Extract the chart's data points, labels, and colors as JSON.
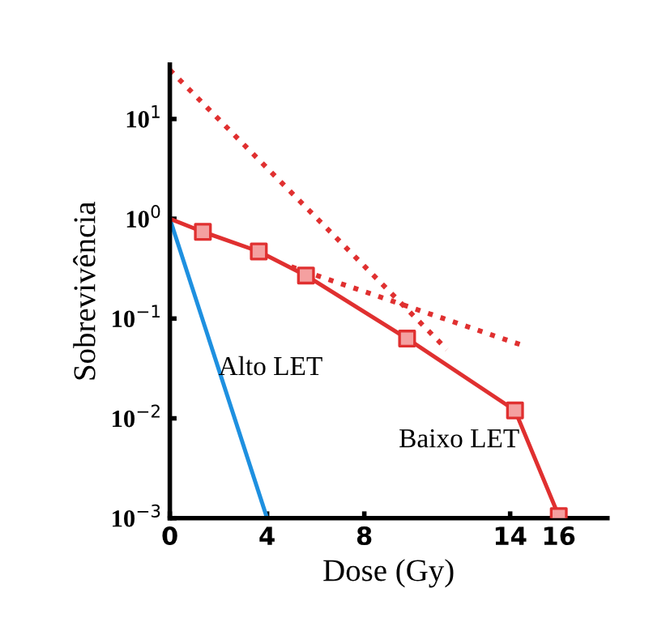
{
  "chart_data": {
    "type": "line",
    "xlabel": "Dose (Gy)",
    "ylabel": "Sobrevivência",
    "log": "y",
    "grid": false,
    "legend": false,
    "xlim": [
      0,
      18
    ],
    "xticks": [
      0,
      4,
      8,
      14,
      16
    ],
    "ylim": [
      0.001,
      35
    ],
    "yticks": [
      {
        "value": 0.001,
        "label": "10$^{−3}$"
      },
      {
        "value": 0.01,
        "label": "10$^{−2}$"
      },
      {
        "value": 0.1,
        "label": "10$^{−1}$"
      },
      {
        "value": 1,
        "label": "10$^{0}$"
      },
      {
        "value": 10,
        "label": "10$^{1}$"
      }
    ],
    "series": [
      {
        "name": "Alto LET",
        "color": "#1e90e0",
        "line_style": "solid",
        "marker": "none",
        "x": [
          0,
          4
        ],
        "values": [
          1,
          0.001
        ]
      },
      {
        "name": "Baixo LET",
        "color": "#e03030",
        "line_style": "solid",
        "marker": "none",
        "x": [
          0,
          1.36,
          3.66,
          5.6,
          9.76,
          14.2,
          16
        ],
        "values": [
          1,
          0.74,
          0.47,
          0.27,
          0.063,
          0.012,
          0.00105
        ]
      },
      {
        "type": "scatter",
        "color": "#e03030",
        "marker": "square",
        "x": [
          1.36,
          3.66,
          5.6,
          9.76,
          14.2,
          16
        ],
        "values": [
          0.74,
          0.47,
          0.27,
          0.063,
          0.012,
          0.00105
        ]
      },
      {
        "color": "#e03030",
        "line_style": "dotted",
        "marker": "none",
        "x": [
          0,
          11.4
        ],
        "values": [
          31,
          0.049
        ]
      },
      {
        "color": "#e03030",
        "line_style": "dotted",
        "marker": "none",
        "x": [
          5.0,
          14.4
        ],
        "values": [
          0.33,
          0.055
        ]
      }
    ]
  }
}
